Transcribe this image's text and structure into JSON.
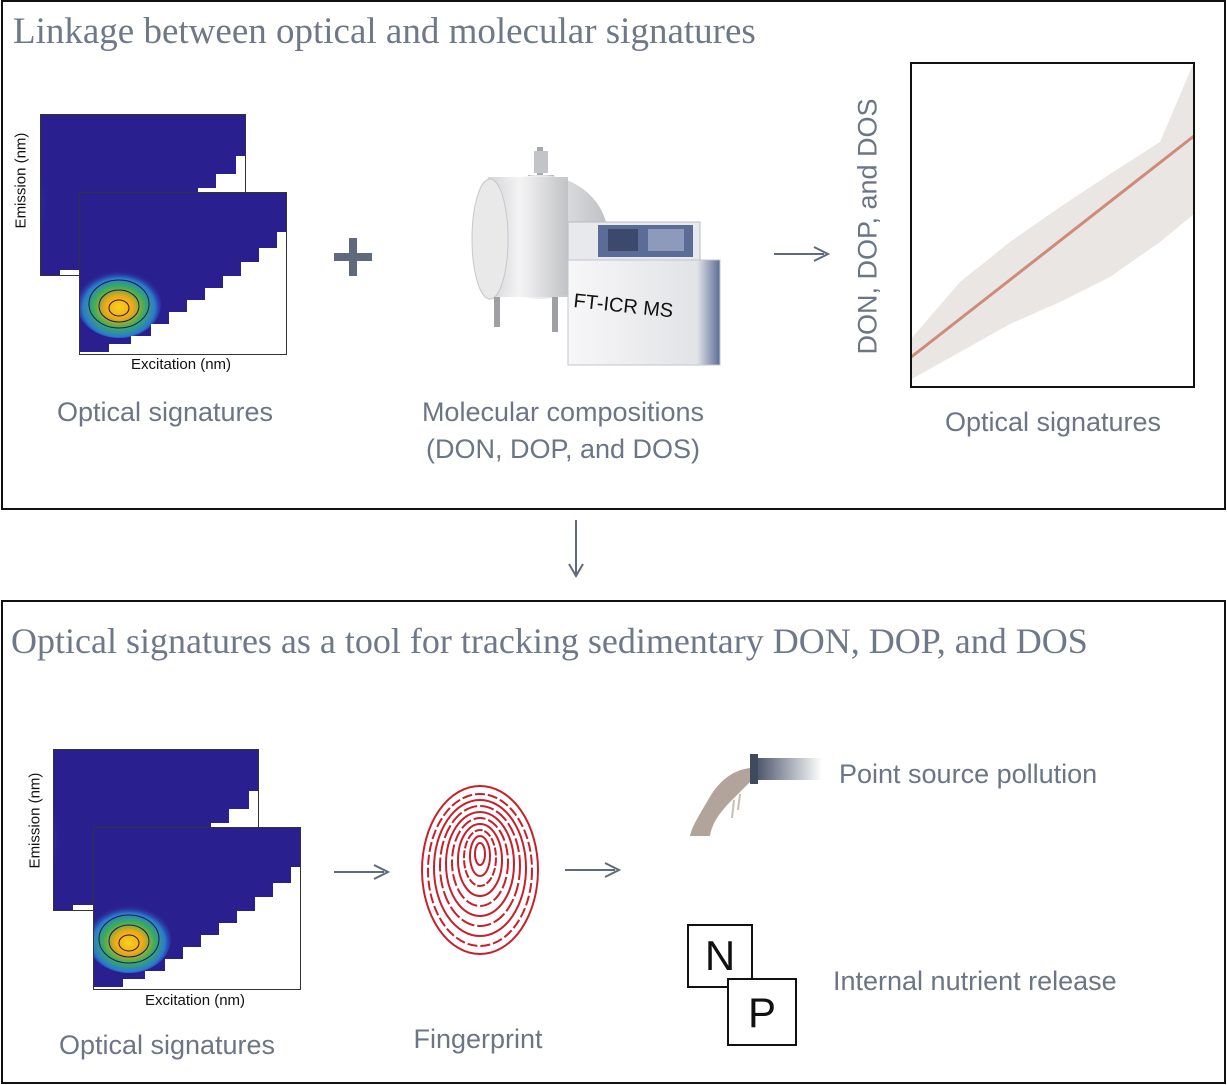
{
  "top_panel": {
    "title": "Linkage between optical and molecular signatures",
    "eem": {
      "y_label": "Emission (nm)",
      "x_label": "Excitation (nm)",
      "caption": "Optical signatures"
    },
    "plus_symbol": "+",
    "instrument": {
      "label": "FT-ICR MS",
      "caption_line1": "Molecular compositions",
      "caption_line2": "(DON, DOP, and DOS)"
    },
    "regression_plot": {
      "y_label": "DON, DOP, and DOS",
      "x_caption": "Optical signatures"
    }
  },
  "bottom_panel": {
    "title": "Optical signatures as a tool for tracking sedimentary DON, DOP, and DOS",
    "eem": {
      "y_label": "Emission (nm)",
      "x_label": "Excitation (nm)",
      "caption": "Optical signatures"
    },
    "fingerprint_caption": "Fingerprint",
    "outcomes": {
      "point_source": "Point source pollution",
      "internal": "Internal nutrient release",
      "n_letter": "N",
      "p_letter": "P"
    }
  },
  "colors": {
    "text_gray": "#6c7585",
    "arrow": "#5f6b7c",
    "eem_background": "#2a1f8f",
    "regression_line": "#d08a78",
    "confidence_band": "#e9e6e3",
    "fingerprint": "#c8202a",
    "pipe": "#4a5366",
    "outflow": "#b3a49b"
  },
  "icons": [
    "plus-icon",
    "arrow-right-icon",
    "arrow-down-icon",
    "fingerprint-icon",
    "pipe-outflow-icon",
    "ft-icr-ms-instrument-icon"
  ]
}
